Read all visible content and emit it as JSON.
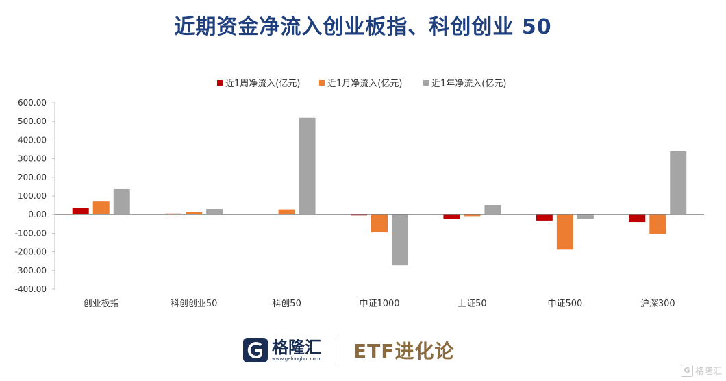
{
  "title": "近期资金净流入创业板指、科创创业 50",
  "footer": {
    "logo_text": "格隆汇",
    "logo_url": "www.gelonghui.com",
    "brand_text": "ETF进化论"
  },
  "watermark": {
    "icon": "G",
    "text": "格隆汇"
  },
  "colors": {
    "title": "#1f3f7f",
    "weekly": "#c00000",
    "monthly": "#ed7d31",
    "yearly": "#a5a5a5"
  },
  "chart_data": {
    "type": "bar",
    "categories": [
      "创业板指",
      "科创创业50",
      "科创50",
      "中证1000",
      "上证50",
      "中证500",
      "沪深300"
    ],
    "series": [
      {
        "name": "近1周净流入(亿元)",
        "color": "#c00000",
        "values": [
          35,
          5,
          0,
          -4,
          -25,
          -32,
          -40
        ]
      },
      {
        "name": "近1月净流入(亿元)",
        "color": "#ed7d31",
        "values": [
          70,
          12,
          28,
          -95,
          -8,
          -188,
          -103
        ]
      },
      {
        "name": "近1年净流入(亿元)",
        "color": "#a5a5a5",
        "values": [
          137,
          30,
          520,
          -272,
          52,
          -22,
          340
        ]
      }
    ],
    "ylim": [
      -400,
      600
    ],
    "yticks": [
      "600.00",
      "500.00",
      "400.00",
      "300.00",
      "200.00",
      "100.00",
      "0.00",
      "-100.00",
      "-200.00",
      "-300.00",
      "-400.00"
    ],
    "grid": false,
    "legend_position": "top"
  }
}
